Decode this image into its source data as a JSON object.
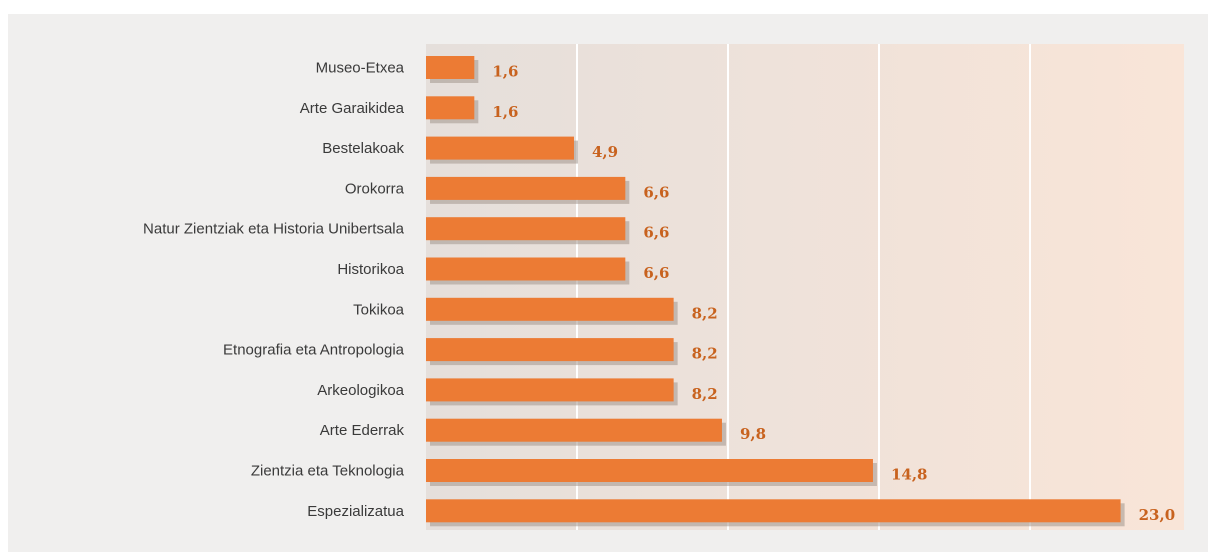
{
  "chart_data": {
    "type": "bar",
    "orientation": "horizontal",
    "title": "",
    "xlabel": "",
    "ylabel": "",
    "xlim": [
      0,
      25
    ],
    "grid": true,
    "categories": [
      "Museo-Etxea",
      "Arte Garaikidea",
      "Bestelakoak",
      "Orokorra",
      "Natur Zientziak eta Historia Unibertsala",
      "Historikoa",
      "Tokikoa",
      "Etnografia eta Antropologia",
      "Arkeologikoa",
      "Arte Ederrak",
      "Zientzia eta Teknologia",
      "Espezializatua"
    ],
    "values": [
      1.6,
      1.6,
      4.9,
      6.6,
      6.6,
      6.6,
      8.2,
      8.2,
      8.2,
      9.8,
      14.8,
      23.0
    ],
    "value_labels": [
      "1,6",
      "1,6",
      "4,9",
      "6,6",
      "6,6",
      "6,6",
      "8,2",
      "8,2",
      "8,2",
      "9,8",
      "14,8",
      "23,0"
    ],
    "colors": {
      "bar": "#ec7b34",
      "bar_shadow": "#a3958c",
      "value_text": "#c8621e",
      "plot_bg_left": "#e5dfdb",
      "plot_bg_right": "#f9e5d8",
      "gridline": "#ffffff"
    }
  }
}
